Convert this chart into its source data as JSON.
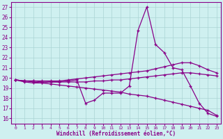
{
  "xlabel": "Windchill (Refroidissement éolien,°C)",
  "background_color": "#cff0f0",
  "grid_color": "#aad4d4",
  "line_color": "#880088",
  "xlim": [
    -0.5,
    23.5
  ],
  "ylim": [
    15.5,
    27.5
  ],
  "yticks": [
    16,
    17,
    18,
    19,
    20,
    21,
    22,
    23,
    24,
    25,
    26,
    27
  ],
  "xticks": [
    0,
    1,
    2,
    3,
    4,
    5,
    6,
    7,
    8,
    9,
    10,
    11,
    12,
    13,
    14,
    15,
    16,
    17,
    18,
    19,
    20,
    21,
    22,
    23
  ],
  "series": [
    {
      "x": [
        0,
        1,
        2,
        3,
        4,
        5,
        6,
        7,
        8,
        9,
        10,
        11,
        12,
        13,
        14,
        15,
        16,
        17,
        18,
        19,
        20,
        21,
        22,
        23
      ],
      "y": [
        19.8,
        19.6,
        19.5,
        19.5,
        19.6,
        19.6,
        19.7,
        19.8,
        17.5,
        17.8,
        18.5,
        18.5,
        18.5,
        19.2,
        24.7,
        27.0,
        23.3,
        22.5,
        21.0,
        20.8,
        19.2,
        17.5,
        16.5,
        16.2
      ]
    },
    {
      "x": [
        0,
        1,
        2,
        3,
        4,
        5,
        6,
        7,
        8,
        9,
        10,
        11,
        12,
        13,
        14,
        15,
        16,
        17,
        18,
        19,
        20,
        21,
        22,
        23
      ],
      "y": [
        19.8,
        19.7,
        19.7,
        19.7,
        19.7,
        19.7,
        19.8,
        19.9,
        20.0,
        20.1,
        20.2,
        20.3,
        20.4,
        20.5,
        20.6,
        20.7,
        20.9,
        21.1,
        21.3,
        21.5,
        21.5,
        21.2,
        20.8,
        20.5
      ]
    },
    {
      "x": [
        0,
        1,
        2,
        3,
        4,
        5,
        6,
        7,
        8,
        9,
        10,
        11,
        12,
        13,
        14,
        15,
        16,
        17,
        18,
        19,
        20,
        21,
        22,
        23
      ],
      "y": [
        19.8,
        19.7,
        19.7,
        19.6,
        19.6,
        19.6,
        19.6,
        19.6,
        19.6,
        19.7,
        19.7,
        19.8,
        19.8,
        19.9,
        20.0,
        20.1,
        20.2,
        20.3,
        20.4,
        20.5,
        20.5,
        20.4,
        20.3,
        20.2
      ]
    },
    {
      "x": [
        0,
        1,
        2,
        3,
        4,
        5,
        6,
        7,
        8,
        9,
        10,
        11,
        12,
        13,
        14,
        15,
        16,
        17,
        18,
        19,
        20,
        21,
        22,
        23
      ],
      "y": [
        19.8,
        19.7,
        19.6,
        19.5,
        19.4,
        19.3,
        19.2,
        19.1,
        19.0,
        18.9,
        18.8,
        18.7,
        18.6,
        18.4,
        18.3,
        18.2,
        18.0,
        17.8,
        17.6,
        17.4,
        17.2,
        17.0,
        16.8,
        16.3
      ]
    }
  ]
}
